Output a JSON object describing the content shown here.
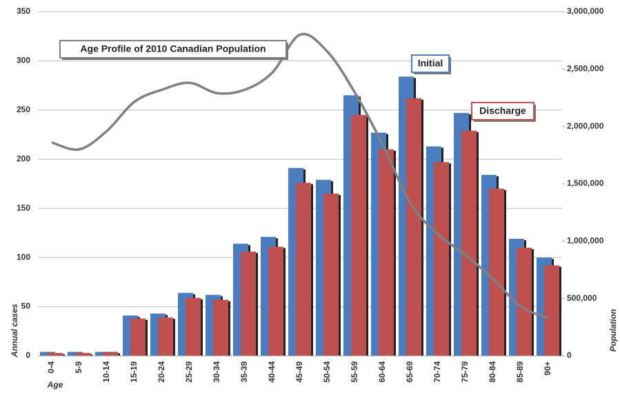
{
  "chart_data": {
    "type": "bar",
    "categories": [
      "0-4",
      "5-9",
      "10-14",
      "15-19",
      "20-24",
      "25-29",
      "30-34",
      "35-39",
      "40-44",
      "45-49",
      "50-54",
      "55-59",
      "60-64",
      "65-69",
      "70-74",
      "75-79",
      "80-84",
      "85-89",
      "90+"
    ],
    "series": [
      {
        "name": "Initial",
        "color": "#4a7cc0",
        "values": [
          4,
          4,
          4,
          41,
          43,
          64,
          62,
          114,
          121,
          191,
          179,
          265,
          227,
          284,
          213,
          247,
          184,
          119,
          100
        ]
      },
      {
        "name": "Discharge",
        "color": "#c0504d",
        "values": [
          3,
          3,
          4,
          38,
          39,
          59,
          57,
          106,
          111,
          176,
          165,
          245,
          210,
          262,
          197,
          229,
          170,
          110,
          92
        ]
      },
      {
        "name": "Age Profile of 2010 Canadian Population",
        "type": "line",
        "axis": "y2",
        "color": "#808080",
        "values": [
          1860000,
          1800000,
          1960000,
          2215000,
          2320000,
          2380000,
          2290000,
          2320000,
          2470000,
          2800000,
          2650000,
          2290000,
          1840000,
          1330000,
          1060000,
          880000,
          670000,
          430000,
          330000
        ]
      }
    ],
    "y_label": "Annual cases",
    "x_label": "Age",
    "y2_label": "Population",
    "ylim": [
      0,
      350
    ],
    "yticks": [
      0,
      50,
      100,
      150,
      200,
      250,
      300,
      350
    ],
    "y2lim": [
      0,
      3000000
    ],
    "y2ticks": [
      0,
      {
        "value": 500000,
        "label": "500,000"
      },
      {
        "value": 1000000,
        "label": "1,000,000"
      },
      {
        "value": 1500000,
        "label": "1,500,000"
      },
      {
        "value": 2000000,
        "label": "2,000,000"
      },
      {
        "value": 2500000,
        "label": "2,500,000"
      },
      {
        "value": 3000000,
        "label": "3,000,000"
      }
    ],
    "grid": true
  }
}
